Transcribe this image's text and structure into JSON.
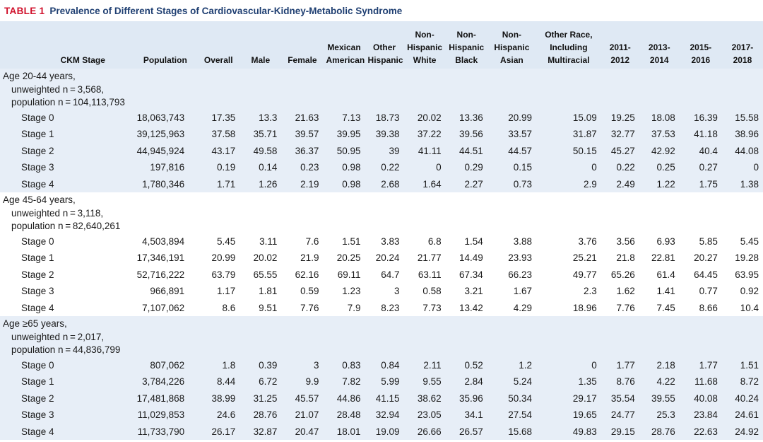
{
  "caption": {
    "label": "TABLE 1",
    "title": "Prevalence of Different Stages of Cardiovascular-Kidney-Metabolic Syndrome"
  },
  "columns": [
    [
      "CKM Stage"
    ],
    [
      "Population"
    ],
    [
      "Overall"
    ],
    [
      "Male"
    ],
    [
      "Female"
    ],
    [
      "Mexican",
      "American"
    ],
    [
      "Other",
      "Hispanic"
    ],
    [
      "Non-",
      "Hispanic",
      "White"
    ],
    [
      "Non-",
      "Hispanic",
      "Black"
    ],
    [
      "Non-",
      "Hispanic",
      "Asian"
    ],
    [
      "Other Race,",
      "Including",
      "Multiracial"
    ],
    [
      "2011-",
      "2012"
    ],
    [
      "2013-",
      "2014"
    ],
    [
      "2015-",
      "2016"
    ],
    [
      "2017-",
      "2018"
    ]
  ],
  "groups": [
    {
      "lines": [
        "Age 20-44 years,",
        "unweighted n = 3,568,",
        "population n = 104,113,793"
      ],
      "rows": [
        [
          "Stage 0",
          "18,063,743",
          "17.35",
          "13.3",
          "21.63",
          "7.13",
          "18.73",
          "20.02",
          "13.36",
          "20.99",
          "15.09",
          "19.25",
          "18.08",
          "16.39",
          "15.58"
        ],
        [
          "Stage 1",
          "39,125,963",
          "37.58",
          "35.71",
          "39.57",
          "39.95",
          "39.38",
          "37.22",
          "39.56",
          "33.57",
          "31.87",
          "32.77",
          "37.53",
          "41.18",
          "38.96"
        ],
        [
          "Stage 2",
          "44,945,924",
          "43.17",
          "49.58",
          "36.37",
          "50.95",
          "39",
          "41.11",
          "44.51",
          "44.57",
          "50.15",
          "45.27",
          "42.92",
          "40.4",
          "44.08"
        ],
        [
          "Stage 3",
          "197,816",
          "0.19",
          "0.14",
          "0.23",
          "0.98",
          "0.22",
          "0",
          "0.29",
          "0.15",
          "0",
          "0.22",
          "0.25",
          "0.27",
          "0"
        ],
        [
          "Stage 4",
          "1,780,346",
          "1.71",
          "1.26",
          "2.19",
          "0.98",
          "2.68",
          "1.64",
          "2.27",
          "0.73",
          "2.9",
          "2.49",
          "1.22",
          "1.75",
          "1.38"
        ]
      ]
    },
    {
      "lines": [
        "Age 45-64 years,",
        "unweighted n = 3,118,",
        "population n = 82,640,261"
      ],
      "rows": [
        [
          "Stage 0",
          "4,503,894",
          "5.45",
          "3.11",
          "7.6",
          "1.51",
          "3.83",
          "6.8",
          "1.54",
          "3.88",
          "3.76",
          "3.56",
          "6.93",
          "5.85",
          "5.45"
        ],
        [
          "Stage 1",
          "17,346,191",
          "20.99",
          "20.02",
          "21.9",
          "20.25",
          "20.24",
          "21.77",
          "14.49",
          "23.93",
          "25.21",
          "21.8",
          "22.81",
          "20.27",
          "19.28"
        ],
        [
          "Stage 2",
          "52,716,222",
          "63.79",
          "65.55",
          "62.16",
          "69.11",
          "64.7",
          "63.11",
          "67.34",
          "66.23",
          "49.77",
          "65.26",
          "61.4",
          "64.45",
          "63.95"
        ],
        [
          "Stage 3",
          "966,891",
          "1.17",
          "1.81",
          "0.59",
          "1.23",
          "3",
          "0.58",
          "3.21",
          "1.67",
          "2.3",
          "1.62",
          "1.41",
          "0.77",
          "0.92"
        ],
        [
          "Stage 4",
          "7,107,062",
          "8.6",
          "9.51",
          "7.76",
          "7.9",
          "8.23",
          "7.73",
          "13.42",
          "4.29",
          "18.96",
          "7.76",
          "7.45",
          "8.66",
          "10.4"
        ]
      ]
    },
    {
      "lines": [
        "Age ≥65 years,",
        "unweighted n = 2,017,",
        "population n = 44,836,799"
      ],
      "rows": [
        [
          "Stage 0",
          "807,062",
          "1.8",
          "0.39",
          "3",
          "0.83",
          "0.84",
          "2.11",
          "0.52",
          "1.2",
          "0",
          "1.77",
          "2.18",
          "1.77",
          "1.51"
        ],
        [
          "Stage 1",
          "3,784,226",
          "8.44",
          "6.72",
          "9.9",
          "7.82",
          "5.99",
          "9.55",
          "2.84",
          "5.24",
          "1.35",
          "8.76",
          "4.22",
          "11.68",
          "8.72"
        ],
        [
          "Stage 2",
          "17,481,868",
          "38.99",
          "31.25",
          "45.57",
          "44.86",
          "41.15",
          "38.62",
          "35.96",
          "50.34",
          "29.17",
          "35.54",
          "39.55",
          "40.08",
          "40.24"
        ],
        [
          "Stage 3",
          "11,029,853",
          "24.6",
          "28.76",
          "21.07",
          "28.48",
          "32.94",
          "23.05",
          "34.1",
          "27.54",
          "19.65",
          "24.77",
          "25.3",
          "23.84",
          "24.61"
        ],
        [
          "Stage 4",
          "11,733,790",
          "26.17",
          "32.87",
          "20.47",
          "18.01",
          "19.09",
          "26.66",
          "26.57",
          "15.68",
          "49.83",
          "29.15",
          "28.76",
          "22.63",
          "24.92"
        ]
      ]
    }
  ]
}
